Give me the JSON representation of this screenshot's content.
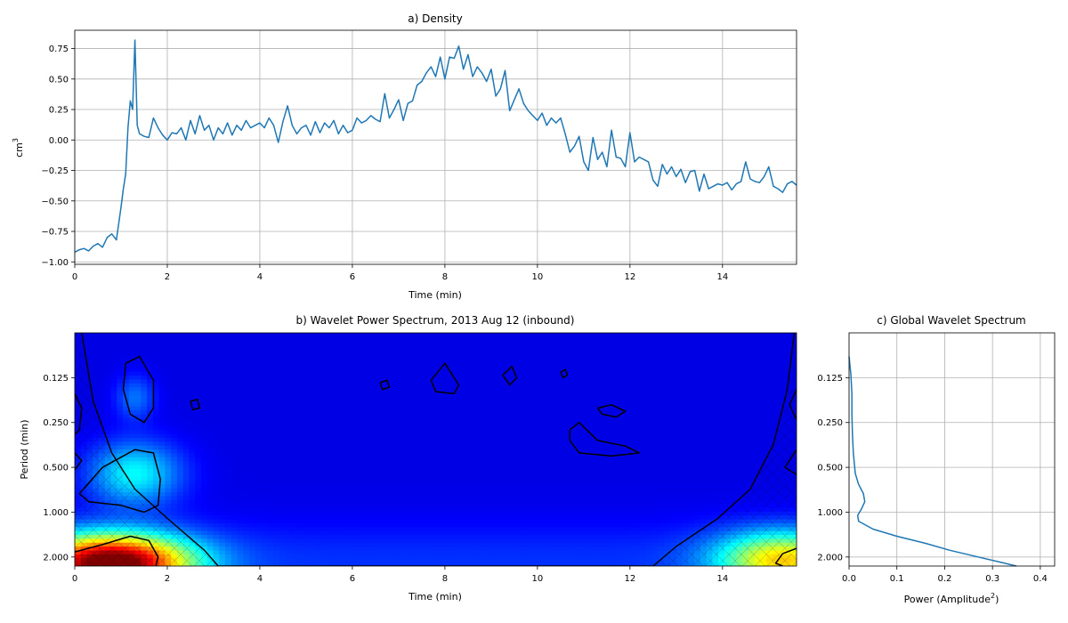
{
  "chart_data": [
    {
      "id": "a",
      "type": "line",
      "title": "a) Density",
      "xlabel": "Time (min)",
      "ylabel": "cm",
      "ylabel_superscript": "3",
      "xlim": [
        0,
        15.6
      ],
      "ylim": [
        -1.02,
        0.9
      ],
      "xticks": [
        0,
        2,
        4,
        6,
        8,
        10,
        12,
        14
      ],
      "xtick_labels": [
        "0",
        "2",
        "4",
        "6",
        "8",
        "10",
        "12",
        "14"
      ],
      "yticks": [
        -1.0,
        -0.75,
        -0.5,
        -0.25,
        0.0,
        0.25,
        0.5,
        0.75
      ],
      "ytick_labels": [
        "−1.00",
        "−0.75",
        "−0.50",
        "−0.25",
        "0.00",
        "0.25",
        "0.50",
        "0.75"
      ],
      "grid": true,
      "line_color": "#1f77b4",
      "series": [
        {
          "x": [
            0,
            0.1,
            0.2,
            0.3,
            0.4,
            0.5,
            0.6,
            0.7,
            0.8,
            0.9,
            1.0,
            1.05,
            1.1,
            1.15,
            1.2,
            1.25,
            1.3,
            1.35,
            1.4,
            1.5,
            1.6,
            1.7,
            1.8,
            1.9,
            2.0,
            2.1,
            2.2,
            2.3,
            2.4,
            2.5,
            2.6,
            2.7,
            2.8,
            2.9,
            3.0,
            3.1,
            3.2,
            3.3,
            3.4,
            3.5,
            3.6,
            3.7,
            3.8,
            3.9,
            4.0,
            4.1,
            4.2,
            4.3,
            4.4,
            4.5,
            4.6,
            4.7,
            4.8,
            4.9,
            5.0,
            5.1,
            5.2,
            5.3,
            5.4,
            5.5,
            5.6,
            5.7,
            5.8,
            5.9,
            6.0,
            6.1,
            6.2,
            6.3,
            6.4,
            6.5,
            6.6,
            6.7,
            6.8,
            6.9,
            7.0,
            7.1,
            7.2,
            7.3,
            7.4,
            7.5,
            7.6,
            7.7,
            7.8,
            7.9,
            8.0,
            8.1,
            8.2,
            8.3,
            8.4,
            8.5,
            8.6,
            8.7,
            8.8,
            8.9,
            9.0,
            9.1,
            9.2,
            9.3,
            9.4,
            9.5,
            9.6,
            9.7,
            9.8,
            9.9,
            10.0,
            10.1,
            10.2,
            10.3,
            10.4,
            10.5,
            10.6,
            10.7,
            10.8,
            10.9,
            11.0,
            11.1,
            11.2,
            11.3,
            11.4,
            11.5,
            11.6,
            11.7,
            11.8,
            11.9,
            12.0,
            12.1,
            12.2,
            12.3,
            12.4,
            12.5,
            12.6,
            12.7,
            12.8,
            12.9,
            13.0,
            13.1,
            13.2,
            13.3,
            13.4,
            13.5,
            13.6,
            13.7,
            13.8,
            13.9,
            14.0,
            14.1,
            14.2,
            14.3,
            14.4,
            14.5,
            14.6,
            14.7,
            14.8,
            14.9,
            15.0,
            15.1,
            15.2,
            15.3,
            15.4,
            15.5,
            15.6
          ],
          "y": [
            -0.92,
            -0.9,
            -0.89,
            -0.91,
            -0.87,
            -0.85,
            -0.88,
            -0.8,
            -0.77,
            -0.82,
            -0.55,
            -0.4,
            -0.28,
            0.1,
            0.32,
            0.25,
            0.82,
            0.12,
            0.05,
            0.03,
            0.02,
            0.18,
            0.1,
            0.04,
            0.0,
            0.06,
            0.05,
            0.1,
            0.0,
            0.16,
            0.05,
            0.2,
            0.08,
            0.12,
            0.0,
            0.1,
            0.05,
            0.14,
            0.04,
            0.12,
            0.08,
            0.16,
            0.1,
            0.12,
            0.14,
            0.1,
            0.18,
            0.12,
            -0.02,
            0.15,
            0.28,
            0.12,
            0.05,
            0.1,
            0.12,
            0.04,
            0.15,
            0.06,
            0.14,
            0.1,
            0.16,
            0.05,
            0.12,
            0.06,
            0.08,
            0.18,
            0.14,
            0.16,
            0.2,
            0.17,
            0.15,
            0.38,
            0.18,
            0.25,
            0.33,
            0.16,
            0.3,
            0.32,
            0.45,
            0.48,
            0.55,
            0.6,
            0.52,
            0.68,
            0.5,
            0.68,
            0.67,
            0.77,
            0.58,
            0.7,
            0.52,
            0.6,
            0.55,
            0.48,
            0.58,
            0.36,
            0.42,
            0.57,
            0.24,
            0.33,
            0.42,
            0.3,
            0.24,
            0.2,
            0.16,
            0.22,
            0.12,
            0.18,
            0.14,
            0.18,
            0.05,
            -0.1,
            -0.05,
            0.03,
            -0.18,
            -0.25,
            0.02,
            -0.16,
            -0.1,
            -0.22,
            0.08,
            -0.14,
            -0.15,
            -0.22,
            0.06,
            -0.18,
            -0.14,
            -0.16,
            -0.18,
            -0.33,
            -0.38,
            -0.2,
            -0.28,
            -0.22,
            -0.3,
            -0.24,
            -0.35,
            -0.26,
            -0.25,
            -0.42,
            -0.28,
            -0.4,
            -0.38,
            -0.36,
            -0.37,
            -0.35,
            -0.41,
            -0.36,
            -0.34,
            -0.18,
            -0.32,
            -0.34,
            -0.35,
            -0.3,
            -0.22,
            -0.38,
            -0.4,
            -0.43,
            -0.36,
            -0.34,
            -0.37
          ]
        }
      ]
    },
    {
      "id": "b",
      "type": "heatmap",
      "title": "b) Wavelet Power Spectrum, 2013 Aug 12 (inbound)",
      "xlabel": "Time (min)",
      "ylabel": "Period (min)",
      "xlim": [
        0,
        15.6
      ],
      "ylim": [
        0.0625,
        2.3
      ],
      "yscale": "log2",
      "y_inverted": true,
      "xticks": [
        0,
        2,
        4,
        6,
        8,
        10,
        12,
        14
      ],
      "xtick_labels": [
        "0",
        "2",
        "4",
        "6",
        "8",
        "10",
        "12",
        "14"
      ],
      "yticks": [
        0.125,
        0.25,
        0.5,
        1.0,
        2.0
      ],
      "ytick_labels": [
        "0.125",
        "0.250",
        "0.500",
        "1.000",
        "2.000"
      ],
      "colormap": "jet",
      "power_peaks": [
        {
          "time": 0.8,
          "period": 2.2,
          "power": 1.0,
          "spread_time": 1.2,
          "spread_period": 0.45
        },
        {
          "time": 15.3,
          "period": 2.1,
          "power": 0.55,
          "spread_time": 1.0,
          "spread_period": 0.45
        },
        {
          "time": 1.3,
          "period": 0.55,
          "power": 0.3,
          "spread_time": 0.7,
          "spread_period": 0.5
        },
        {
          "time": 1.3,
          "period": 0.17,
          "power": 0.15,
          "spread_time": 0.3,
          "spread_period": 0.35
        }
      ],
      "cone_of_influence": [
        {
          "time": 0.15,
          "period": 0.0625
        },
        {
          "time": 0.4,
          "period": 0.18
        },
        {
          "time": 0.8,
          "period": 0.4
        },
        {
          "time": 1.3,
          "period": 0.7
        },
        {
          "time": 2.0,
          "period": 1.1
        },
        {
          "time": 2.8,
          "period": 1.8
        },
        {
          "time": 3.1,
          "period": 2.3
        },
        {
          "time": 12.5,
          "period": 2.3
        },
        {
          "time": 13.0,
          "period": 1.7
        },
        {
          "time": 13.9,
          "period": 1.1
        },
        {
          "time": 14.6,
          "period": 0.7
        },
        {
          "time": 15.1,
          "period": 0.35
        },
        {
          "time": 15.4,
          "period": 0.15
        },
        {
          "time": 15.55,
          "period": 0.0625
        }
      ],
      "contours": [
        [
          [
            0.0,
            1.85
          ],
          [
            0.6,
            1.65
          ],
          [
            1.2,
            1.45
          ],
          [
            1.6,
            1.55
          ],
          [
            1.8,
            2.0
          ],
          [
            1.75,
            2.3
          ]
        ],
        [
          [
            15.6,
            1.75
          ],
          [
            15.3,
            1.9
          ],
          [
            15.15,
            2.2
          ],
          [
            15.3,
            2.3
          ]
        ],
        [
          [
            0.1,
            0.75
          ],
          [
            0.6,
            0.5
          ],
          [
            1.3,
            0.38
          ],
          [
            1.7,
            0.4
          ],
          [
            1.85,
            0.6
          ],
          [
            1.8,
            0.9
          ],
          [
            1.5,
            1.0
          ],
          [
            1.0,
            0.9
          ],
          [
            0.3,
            0.85
          ],
          [
            0.1,
            0.75
          ]
        ],
        [
          [
            1.1,
            0.1
          ],
          [
            1.4,
            0.09
          ],
          [
            1.7,
            0.13
          ],
          [
            1.7,
            0.2
          ],
          [
            1.5,
            0.25
          ],
          [
            1.2,
            0.22
          ],
          [
            1.05,
            0.15
          ],
          [
            1.1,
            0.1
          ]
        ],
        [
          [
            0.0,
            0.16
          ],
          [
            0.15,
            0.2
          ],
          [
            0.1,
            0.28
          ],
          [
            0.0,
            0.3
          ]
        ],
        [
          [
            0.0,
            0.4
          ],
          [
            0.15,
            0.45
          ],
          [
            0.0,
            0.52
          ]
        ],
        [
          [
            2.5,
            0.18
          ],
          [
            2.65,
            0.175
          ],
          [
            2.7,
            0.2
          ],
          [
            2.55,
            0.205
          ],
          [
            2.5,
            0.18
          ]
        ],
        [
          [
            6.6,
            0.135
          ],
          [
            6.75,
            0.13
          ],
          [
            6.8,
            0.145
          ],
          [
            6.65,
            0.15
          ],
          [
            6.6,
            0.135
          ]
        ],
        [
          [
            7.7,
            0.13
          ],
          [
            8.0,
            0.1
          ],
          [
            8.3,
            0.14
          ],
          [
            8.2,
            0.16
          ],
          [
            7.8,
            0.155
          ],
          [
            7.7,
            0.13
          ]
        ],
        [
          [
            9.25,
            0.12
          ],
          [
            9.45,
            0.105
          ],
          [
            9.55,
            0.125
          ],
          [
            9.4,
            0.14
          ],
          [
            9.25,
            0.12
          ]
        ],
        [
          [
            10.5,
            0.115
          ],
          [
            10.6,
            0.11
          ],
          [
            10.65,
            0.12
          ],
          [
            10.55,
            0.125
          ],
          [
            10.5,
            0.115
          ]
        ],
        [
          [
            10.7,
            0.28
          ],
          [
            10.9,
            0.25
          ],
          [
            11.3,
            0.33
          ],
          [
            11.9,
            0.36
          ],
          [
            12.2,
            0.4
          ],
          [
            11.6,
            0.42
          ],
          [
            10.9,
            0.4
          ],
          [
            10.7,
            0.33
          ],
          [
            10.7,
            0.28
          ]
        ],
        [
          [
            11.3,
            0.2
          ],
          [
            11.6,
            0.19
          ],
          [
            11.9,
            0.21
          ],
          [
            11.7,
            0.23
          ],
          [
            11.4,
            0.22
          ],
          [
            11.3,
            0.2
          ]
        ],
        [
          [
            15.6,
            0.15
          ],
          [
            15.45,
            0.19
          ],
          [
            15.6,
            0.24
          ]
        ],
        [
          [
            15.6,
            0.38
          ],
          [
            15.35,
            0.5
          ],
          [
            15.6,
            0.56
          ]
        ]
      ]
    },
    {
      "id": "c",
      "type": "line",
      "title": "c) Global Wavelet Spectrum",
      "xlabel": "Power (Amplitude",
      "xlabel_superscript": "2",
      "xlabel_suffix": ")",
      "xlim": [
        0,
        0.43
      ],
      "ylim": [
        0.0625,
        2.3
      ],
      "yscale": "log2",
      "y_inverted": true,
      "xticks": [
        0,
        0.1,
        0.2,
        0.3,
        0.4
      ],
      "xtick_labels": [
        "0.0",
        "0.1",
        "0.2",
        "0.3",
        "0.4"
      ],
      "yticks": [
        0.125,
        0.25,
        0.5,
        1.0,
        2.0
      ],
      "ytick_labels": [
        "0.125",
        "0.250",
        "0.500",
        "1.000",
        "2.000"
      ],
      "grid": true,
      "line_color": "#1f77b4",
      "series": [
        {
          "x": [
            0.0,
            0.004,
            0.006,
            0.006,
            0.007,
            0.009,
            0.013,
            0.02,
            0.03,
            0.033,
            0.026,
            0.018,
            0.02,
            0.05,
            0.1,
            0.16,
            0.21,
            0.27,
            0.32,
            0.35
          ],
          "y": [
            0.09,
            0.12,
            0.16,
            0.22,
            0.3,
            0.4,
            0.55,
            0.65,
            0.75,
            0.85,
            0.95,
            1.05,
            1.15,
            1.3,
            1.45,
            1.62,
            1.8,
            2.0,
            2.18,
            2.3
          ]
        }
      ]
    }
  ]
}
